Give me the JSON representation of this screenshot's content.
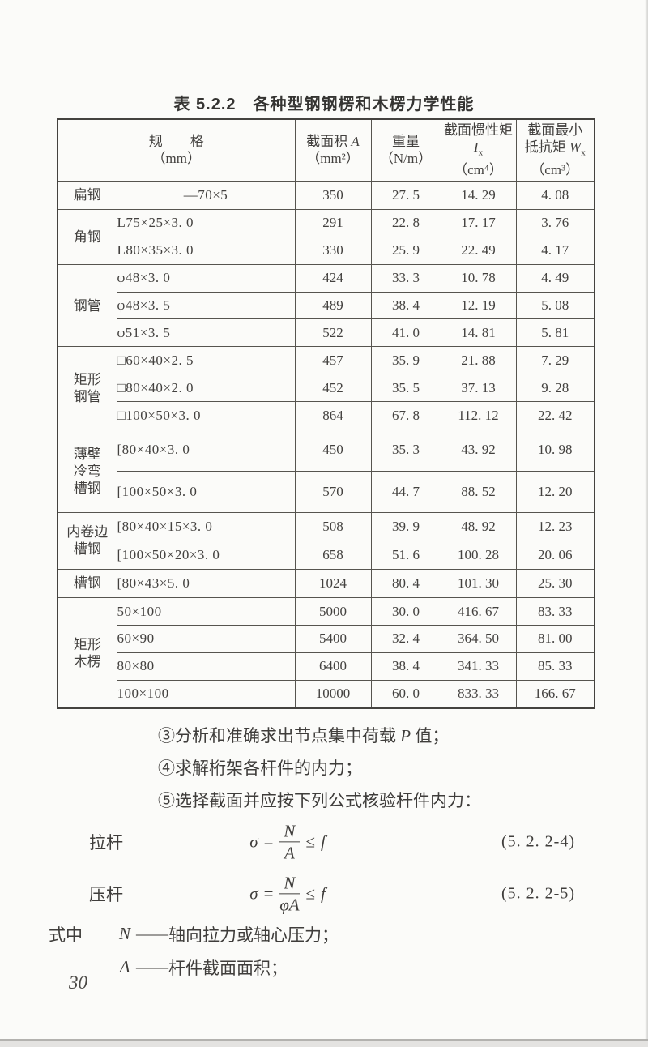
{
  "page": {
    "table_title": "表 5.2.2　各种型钢钢楞和木楞力学性能",
    "page_number": "30"
  },
  "table": {
    "header": {
      "spec": {
        "l1": "规　　格",
        "l2": "（mm）"
      },
      "area": {
        "l1a": "截面积 ",
        "l1b": "A",
        "l2": "（mm²）"
      },
      "weight": {
        "l1": "重量",
        "l2": "（N/m）"
      },
      "inertia": {
        "l1": "截面惯性矩",
        "l2a": "I",
        "l2b": "x",
        "l3": "（cm⁴）"
      },
      "resist": {
        "l1": "截面最小",
        "l2a": "抵抗矩 ",
        "l2b": "W",
        "l2c": "x",
        "l3": "（cm³）"
      }
    },
    "groups": [
      {
        "category": "扁钢",
        "rows": [
          {
            "spec": "—70×5",
            "align": "center",
            "values": [
              "350",
              "27. 5",
              "14. 29",
              "4. 08"
            ]
          }
        ]
      },
      {
        "category": "角钢",
        "rows": [
          {
            "spec": "L75×25×3. 0",
            "values": [
              "291",
              "22. 8",
              "17. 17",
              "3. 76"
            ]
          },
          {
            "spec": "L80×35×3. 0",
            "values": [
              "330",
              "25. 9",
              "22. 49",
              "4. 17"
            ]
          }
        ]
      },
      {
        "category": "钢管",
        "rows": [
          {
            "spec": "φ48×3. 0",
            "values": [
              "424",
              "33. 3",
              "10. 78",
              "4. 49"
            ]
          },
          {
            "spec": "φ48×3. 5",
            "values": [
              "489",
              "38. 4",
              "12. 19",
              "5. 08"
            ]
          },
          {
            "spec": "φ51×3. 5",
            "values": [
              "522",
              "41. 0",
              "14. 81",
              "5. 81"
            ]
          }
        ]
      },
      {
        "category": "矩形\n钢管",
        "rows": [
          {
            "spec": "□60×40×2. 5",
            "values": [
              "457",
              "35. 9",
              "21. 88",
              "7. 29"
            ]
          },
          {
            "spec": "□80×40×2. 0",
            "values": [
              "452",
              "35. 5",
              "37. 13",
              "9. 28"
            ]
          },
          {
            "spec": "□100×50×3. 0",
            "values": [
              "864",
              "67. 8",
              "112. 12",
              "22. 42"
            ]
          }
        ]
      },
      {
        "category": "薄壁\n冷弯\n槽钢",
        "rows": [
          {
            "spec": "[80×40×3. 0",
            "values": [
              "450",
              "35. 3",
              "43. 92",
              "10. 98"
            ]
          },
          {
            "spec": "[100×50×3. 0",
            "values": [
              "570",
              "44. 7",
              "88. 52",
              "12. 20"
            ]
          }
        ]
      },
      {
        "category": "内卷边\n槽钢",
        "rows": [
          {
            "spec": "[80×40×15×3. 0",
            "values": [
              "508",
              "39. 9",
              "48. 92",
              "12. 23"
            ]
          },
          {
            "spec": "[100×50×20×3. 0",
            "values": [
              "658",
              "51. 6",
              "100. 28",
              "20. 06"
            ]
          }
        ]
      },
      {
        "category": "槽钢",
        "rows": [
          {
            "spec": "[80×43×5. 0",
            "values": [
              "1024",
              "80. 4",
              "101. 30",
              "25. 30"
            ]
          }
        ]
      },
      {
        "category": "矩形\n木楞",
        "rows": [
          {
            "spec": "50×100",
            "values": [
              "5000",
              "30. 0",
              "416. 67",
              "83. 33"
            ]
          },
          {
            "spec": "60×90",
            "values": [
              "5400",
              "32. 4",
              "364. 50",
              "81. 00"
            ]
          },
          {
            "spec": "80×80",
            "values": [
              "6400",
              "38. 4",
              "341. 33",
              "85. 33"
            ]
          },
          {
            "spec": "100×100",
            "values": [
              "10000",
              "60. 0",
              "833. 33",
              "166. 67"
            ]
          }
        ]
      }
    ]
  },
  "notes": {
    "n3": {
      "pre": "③分析和准确求出节点集中荷载 ",
      "sym": "P",
      "post": " 值；"
    },
    "n4": {
      "text": "④求解桁架各杆件的内力；"
    },
    "n5": {
      "text": "⑤选择截面并应按下列公式核验杆件内力："
    }
  },
  "formulas": [
    {
      "label": "拉杆",
      "sigma": "σ",
      "eq": "=",
      "num": "N",
      "den": "A",
      "leq": "≤",
      "f": "f",
      "number": "(5. 2. 2-4)"
    },
    {
      "label": "压杆",
      "sigma": "σ",
      "eq": "=",
      "num": "N",
      "den": "φA",
      "leq": "≤",
      "f": "f",
      "number": "(5. 2. 2-5)"
    }
  ],
  "where": {
    "prefix": "式中",
    "items": [
      {
        "sym": "N",
        "dash": "——",
        "text": "轴向拉力或轴心压力；"
      },
      {
        "sym": "A",
        "dash": "——",
        "text": "杆件截面面积；"
      }
    ]
  }
}
